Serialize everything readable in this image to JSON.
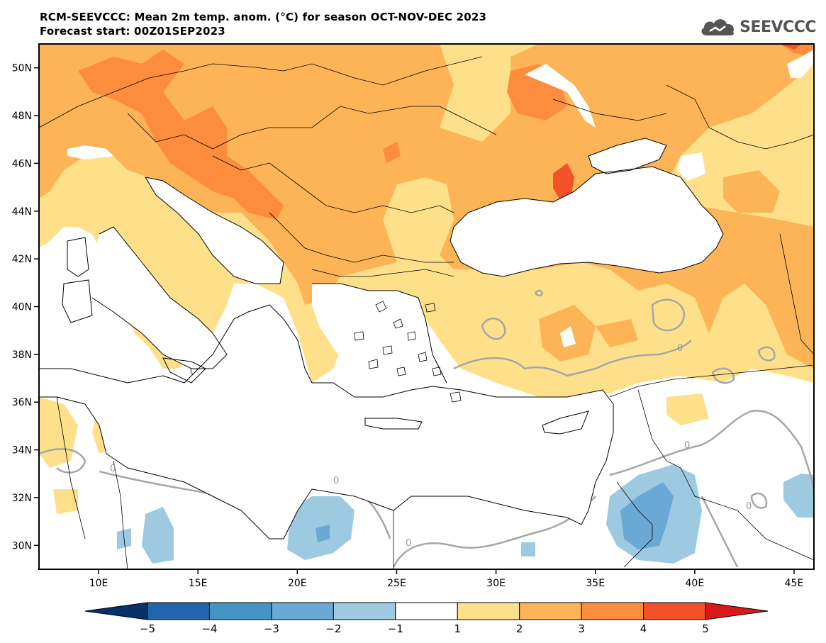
{
  "header": {
    "line1": "RCM-SEEVCCC: Mean 2m temp. anom. (°C) for season OCT-NOV-DEC 2023",
    "line2": "Forecast start: 00Z01SEP2023"
  },
  "logo": {
    "text": "SEEVCCC",
    "icon": "cloud-icon"
  },
  "map": {
    "lon_range": [
      7,
      46
    ],
    "lat_range": [
      29,
      51
    ],
    "lon_ticks": [
      {
        "value": 10,
        "label": "10E"
      },
      {
        "value": 15,
        "label": "15E"
      },
      {
        "value": 20,
        "label": "20E"
      },
      {
        "value": 25,
        "label": "25E"
      },
      {
        "value": 30,
        "label": "30E"
      },
      {
        "value": 35,
        "label": "35E"
      },
      {
        "value": 40,
        "label": "40E"
      },
      {
        "value": 45,
        "label": "45E"
      }
    ],
    "lat_ticks": [
      {
        "value": 30,
        "label": "30N"
      },
      {
        "value": 32,
        "label": "32N"
      },
      {
        "value": 34,
        "label": "34N"
      },
      {
        "value": 36,
        "label": "36N"
      },
      {
        "value": 38,
        "label": "38N"
      },
      {
        "value": 40,
        "label": "40N"
      },
      {
        "value": 42,
        "label": "42N"
      },
      {
        "value": 44,
        "label": "44N"
      },
      {
        "value": 46,
        "label": "46N"
      },
      {
        "value": 48,
        "label": "48N"
      },
      {
        "value": 50,
        "label": "50N"
      }
    ],
    "contour_labels": [
      "0",
      "0",
      "0",
      "0",
      "0",
      "0"
    ]
  },
  "colorbar": {
    "bins": [
      {
        "from": null,
        "to": -5,
        "color": "#08306b"
      },
      {
        "from": -5,
        "to": -4,
        "color": "#2166ac"
      },
      {
        "from": -4,
        "to": -3,
        "color": "#4393c3"
      },
      {
        "from": -3,
        "to": -2,
        "color": "#6aa8d5"
      },
      {
        "from": -2,
        "to": -1,
        "color": "#9ecae1"
      },
      {
        "from": -1,
        "to": 1,
        "color": "#ffffff"
      },
      {
        "from": 1,
        "to": 2,
        "color": "#fee08b"
      },
      {
        "from": 2,
        "to": 3,
        "color": "#fdb456"
      },
      {
        "from": 3,
        "to": 4,
        "color": "#fc8d3c"
      },
      {
        "from": 4,
        "to": 5,
        "color": "#f4502a"
      },
      {
        "from": 5,
        "to": null,
        "color": "#d7191c"
      }
    ],
    "labels": [
      "−5",
      "−4",
      "−3",
      "−2",
      "−1",
      "1",
      "2",
      "3",
      "4",
      "5"
    ]
  }
}
